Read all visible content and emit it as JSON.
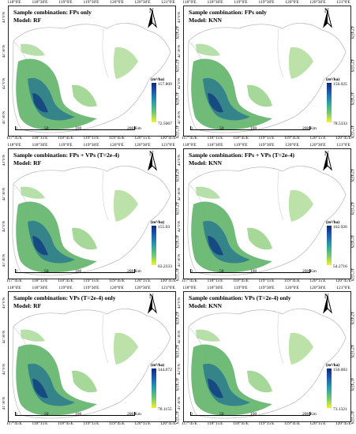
{
  "lon_top": [
    "118°0'E",
    "118°30'E",
    "119°0'E",
    "119°30'E",
    "120°0'E",
    "120°30'E",
    "121°0'E"
  ],
  "lon_bottom": [
    "117°45'E",
    "118°15'E",
    "118°45'E",
    "119°15'E",
    "119°45'E",
    "120°15'E",
    "120°45'E"
  ],
  "lat_left": [
    "43°0'N",
    "42°30'N",
    "42°0'N",
    "41°30'N"
  ],
  "lat_right": [
    "42°45'N",
    "42°15'N",
    "41°45'N",
    "41°15'N"
  ],
  "unit": "(m³/ha)",
  "north": "N",
  "scale": {
    "s0": "0",
    "s50": "50",
    "s100": "100",
    "s200": "200  Km"
  },
  "panels": [
    {
      "title": "Sample combination: FPs only",
      "model": "Model: RF",
      "max": "157.809",
      "min": "72.5067"
    },
    {
      "title": "Sample combination: FPs only",
      "model": "Model: KNN",
      "max": "156.925",
      "min": "78.5333"
    },
    {
      "title": "Sample combination: FPs + VPs (T=2e-4)",
      "model": "Model: RF",
      "max": "155.03",
      "min": "63.2333"
    },
    {
      "title": "Sample combination: FPs + VPs (T=2e-4)",
      "model": "Model: KNN",
      "max": "162.926",
      "min": "54.2716"
    },
    {
      "title": "Sample combination: VPs (T=2e-4) only",
      "model": "Model: RF",
      "max": "144.072",
      "min": "78.1155"
    },
    {
      "title": "Sample combination: VPs (T=2e-4) only",
      "model": "Model: KNN",
      "max": "150.083",
      "min": "73.1321"
    }
  ]
}
